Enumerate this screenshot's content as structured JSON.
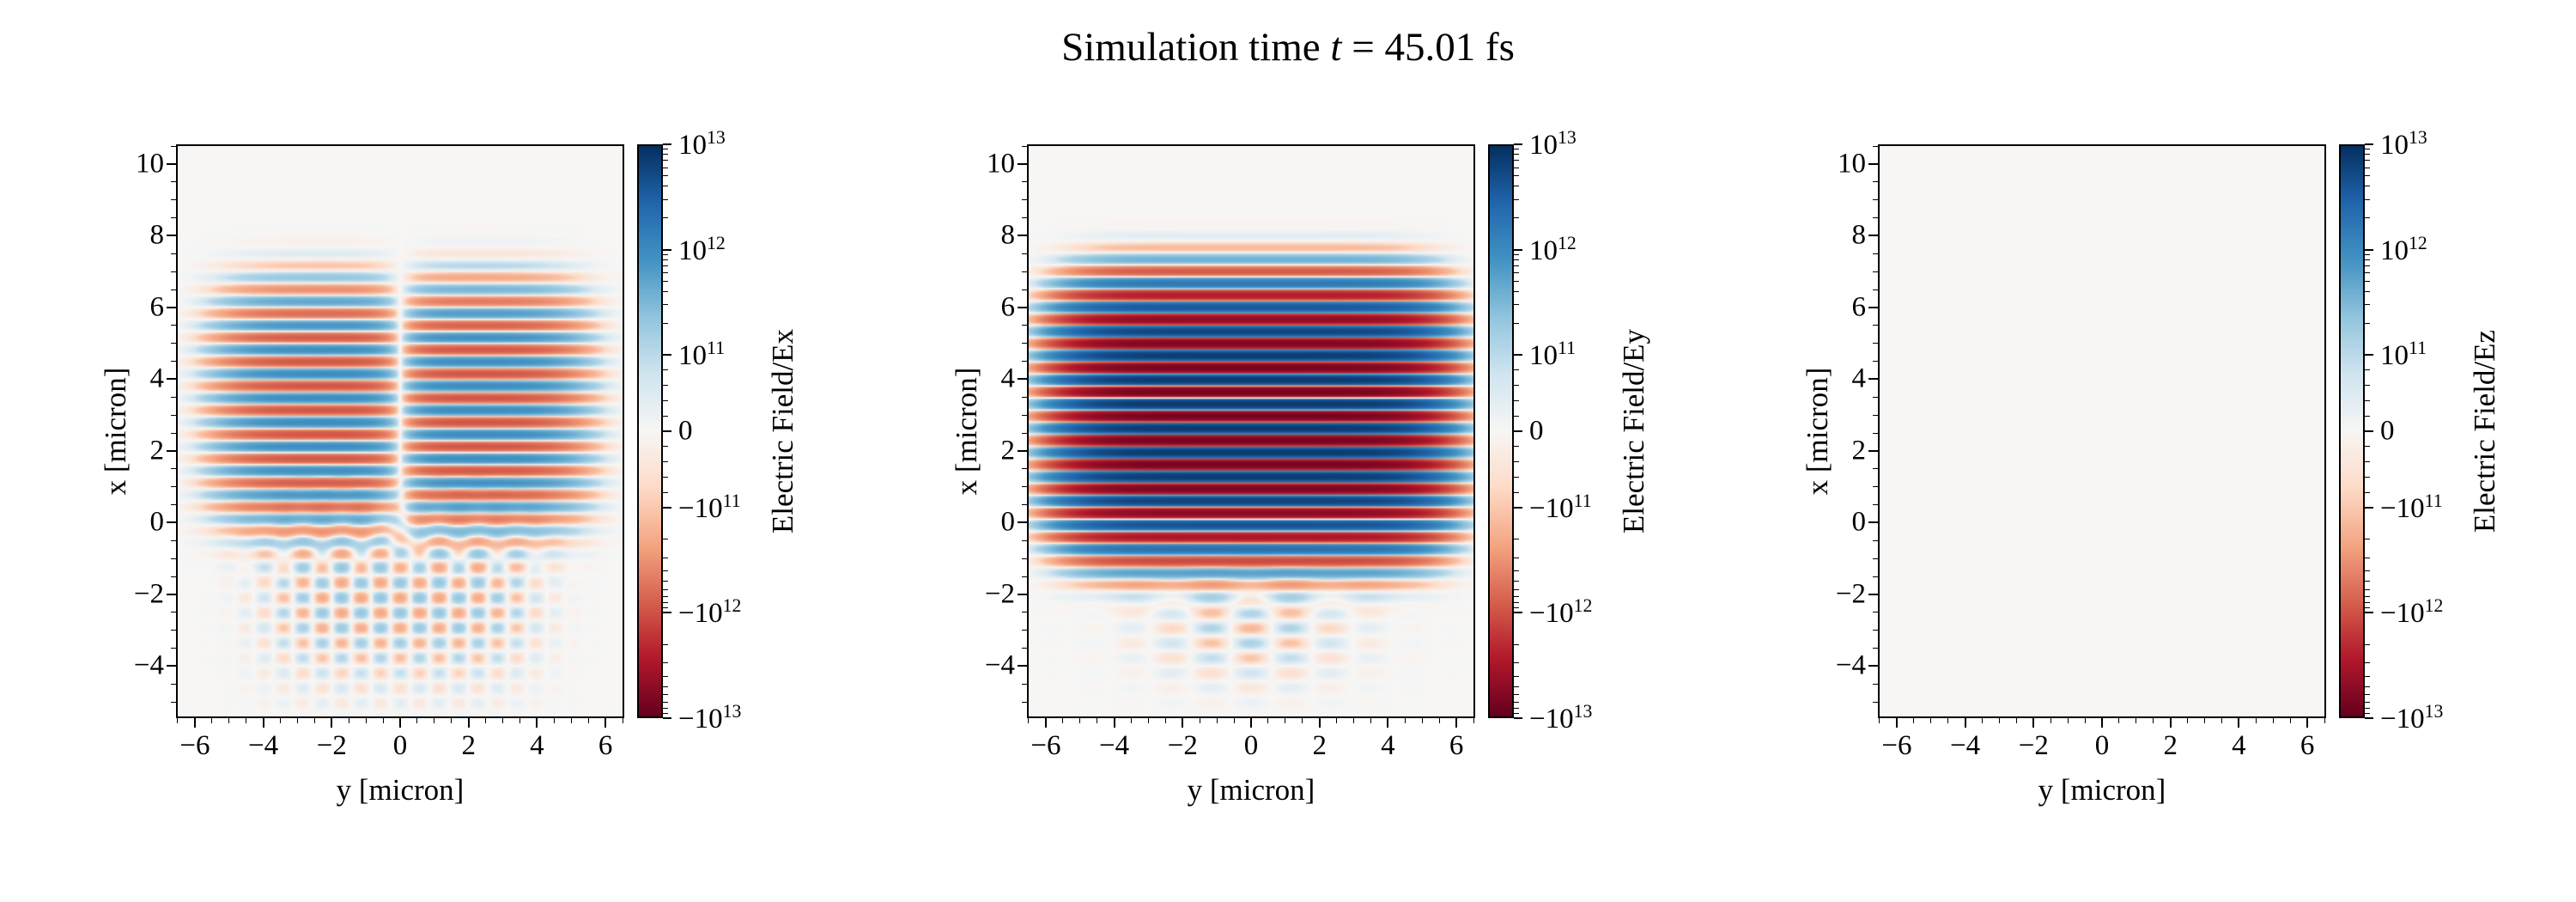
{
  "figure": {
    "background": "#ffffff"
  },
  "chart_data": {
    "type": "heatmap",
    "title": {
      "prefix": "Simulation time ",
      "symbol": "t",
      "suffix": " = 45.01 fs",
      "time_fs": 45.01
    },
    "layout": {
      "n_panels": 3,
      "legend": "none",
      "grid": false
    },
    "colormap": {
      "name": "RdBu",
      "stops": [
        {
          "u": 0.0,
          "color": "#67001f"
        },
        {
          "u": 0.1,
          "color": "#b2182b"
        },
        {
          "u": 0.2,
          "color": "#d6604d"
        },
        {
          "u": 0.3,
          "color": "#f4a582"
        },
        {
          "u": 0.4,
          "color": "#fddbc7"
        },
        {
          "u": 0.5,
          "color": "#f7f6f5"
        },
        {
          "u": 0.6,
          "color": "#d1e5f0"
        },
        {
          "u": 0.7,
          "color": "#92c5de"
        },
        {
          "u": 0.8,
          "color": "#4393c3"
        },
        {
          "u": 0.9,
          "color": "#2166ac"
        },
        {
          "u": 1.0,
          "color": "#053061"
        }
      ]
    },
    "norm": {
      "type": "symlog",
      "linthresh": 100000000000.0,
      "vmax": 10000000000000.0,
      "vmin": -10000000000000.0,
      "decades": 2,
      "linfrac": 0.266
    },
    "axes": {
      "xlabel": "y [micron]",
      "ylabel": "x [micron]",
      "x_range": [
        -6.55,
        6.55
      ],
      "y_range": [
        -5.45,
        10.55
      ],
      "x_ticks": {
        "values": [
          -6,
          -4,
          -2,
          0,
          2,
          4,
          6
        ],
        "labels": [
          "−6",
          "−4",
          "−2",
          "0",
          "2",
          "4",
          "6"
        ]
      },
      "y_ticks": {
        "values": [
          10,
          8,
          6,
          4,
          2,
          0,
          -2,
          -4
        ],
        "labels": [
          "10",
          "8",
          "6",
          "4",
          "2",
          "0",
          "−2",
          "−4"
        ]
      },
      "x_minor_step": 0.5,
      "y_minor_step": 0.5
    },
    "colorbar": {
      "ticks": [
        {
          "value": 10000000000000.0,
          "label": "10^13"
        },
        {
          "value": 1000000000000.0,
          "label": "10^12"
        },
        {
          "value": 100000000000.0,
          "label": "10^11"
        },
        {
          "value": 0,
          "label": "0"
        },
        {
          "value": -100000000000.0,
          "label": "−10^11"
        },
        {
          "value": -1000000000000.0,
          "label": "−10^12"
        },
        {
          "value": -10000000000000.0,
          "label": "−10^13"
        }
      ]
    },
    "panels": [
      {
        "id": "Ex",
        "cbar_label": "Electric Field/Ex",
        "description": "Ex component: medium-amplitude horizontal stripe pattern for x about 0 to 7 micron, antisymmetric about y=0 with a null column at y=0; weak scattered speckle pattern below x=0.",
        "components": [
          {
            "amp": 1000000000000.0,
            "lam": 0.68,
            "phase": 2.4,
            "x0": 3.2,
            "sx": 3.3,
            "px": 4,
            "y0": 0,
            "sy": 5.2,
            "py": 6,
            "ymod": "tanh",
            "yscale": 0.8
          },
          {
            "amp": 220000000000.0,
            "lam": 0.85,
            "phase": 0,
            "x0": -2.2,
            "sx": 2.2,
            "px": 2,
            "y0": 0,
            "sy": 4.0,
            "py": 4,
            "ymod": "cos",
            "ylam": 1.15
          }
        ]
      },
      {
        "id": "Ey",
        "cbar_label": "Electric Field/Ey",
        "description": "Ey component (main laser polarization): intense saturated stripe pattern (peak ~8e12) spanning y -6 to 6 micron and x -1.5 to 7.5 micron; faint trailing blobs near x -2 to -4.",
        "components": [
          {
            "amp": 8000000000000.0,
            "lam": 0.68,
            "phase": 0.8,
            "x0": 2.9,
            "sx": 3.4,
            "px": 4,
            "y0": 0,
            "sy": 5.3,
            "py": 6,
            "ymod": "none"
          },
          {
            "amp": 150000000000.0,
            "lam": 0.85,
            "phase": 0,
            "x0": -3.0,
            "sx": 1.5,
            "px": 2,
            "y0": 0,
            "sy": 3.0,
            "py": 2,
            "ymod": "cos",
            "ylam": 2.4
          }
        ]
      },
      {
        "id": "Ez",
        "cbar_label": "Electric Field/Ez",
        "description": "Ez component is approximately zero everywhere (uniform near-white background).",
        "components": []
      }
    ]
  }
}
